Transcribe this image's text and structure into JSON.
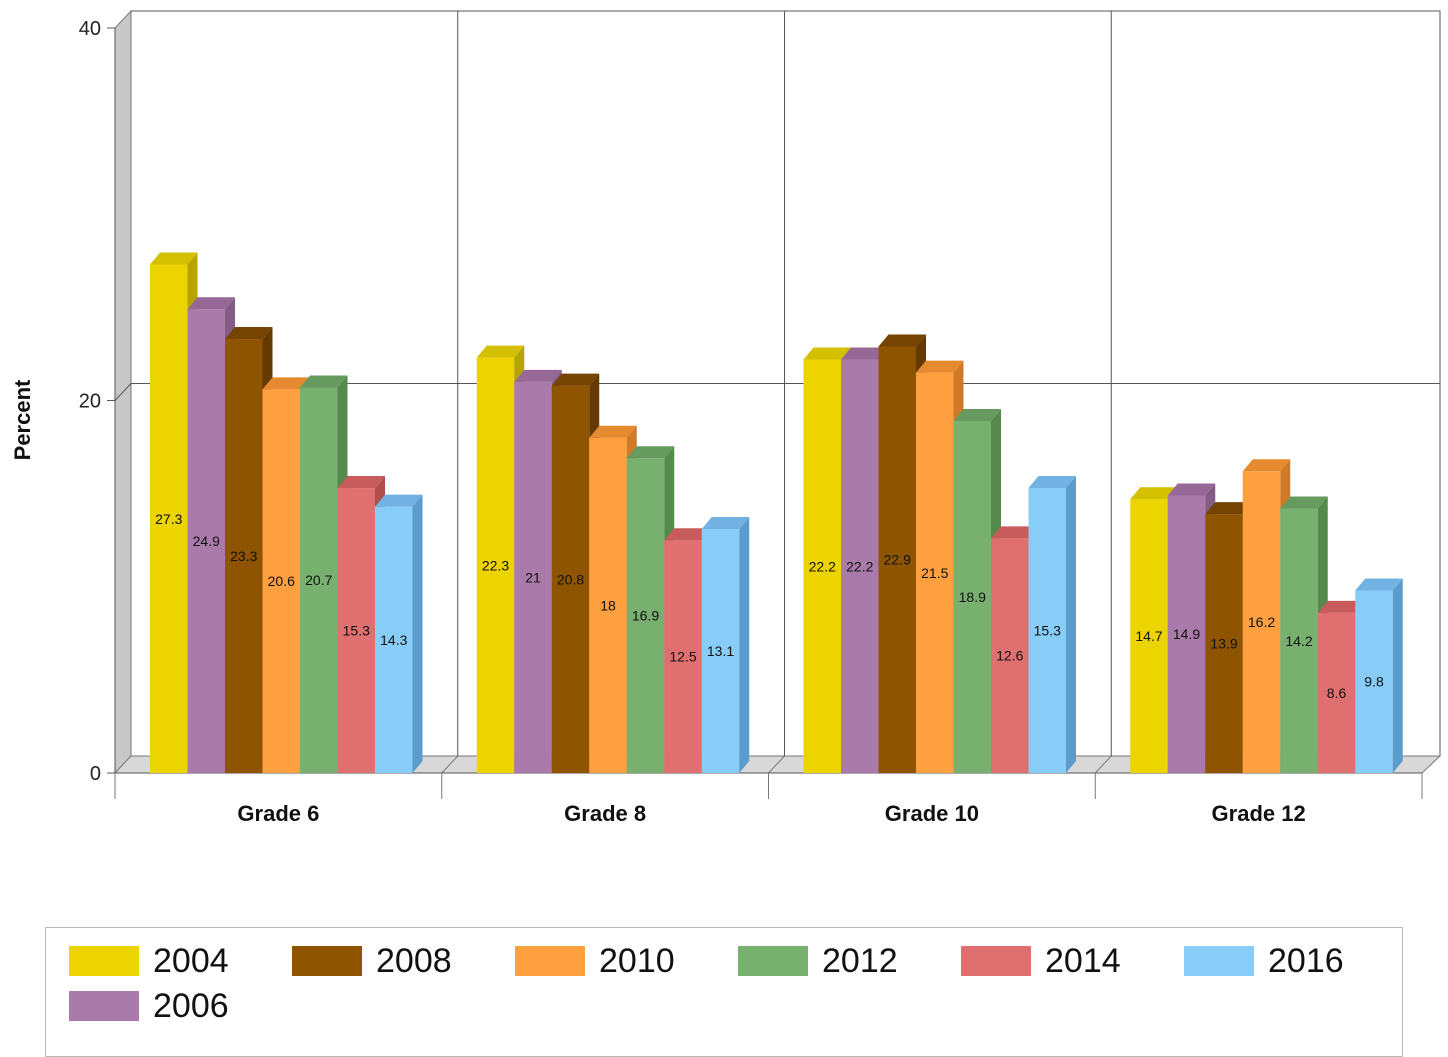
{
  "chart_data": {
    "type": "bar",
    "ylabel": "Percent",
    "ylim": [
      0,
      40
    ],
    "yticks": [
      "0",
      "20",
      "40"
    ],
    "grid": true,
    "style": "3d",
    "legend_position": "bottom",
    "categories": [
      "Grade 6",
      "Grade 8",
      "Grade 10",
      "Grade 12"
    ],
    "series": [
      {
        "name": "2004",
        "color": "#ecd400",
        "side": "#b8a400",
        "top": "#d4bf00",
        "values": [
          27.3,
          22.3,
          22.2,
          14.7
        ]
      },
      {
        "name": "2006",
        "color": "#aa7aaa",
        "side": "#845c84",
        "top": "#966896",
        "values": [
          24.9,
          21,
          22.2,
          14.9
        ]
      },
      {
        "name": "2008",
        "color": "#8e5400",
        "side": "#643a00",
        "top": "#744400",
        "values": [
          23.3,
          20.8,
          22.9,
          13.9
        ]
      },
      {
        "name": "2010",
        "color": "#ffa040",
        "side": "#d07a28",
        "top": "#e68a30",
        "values": [
          20.6,
          18,
          21.5,
          16.2
        ]
      },
      {
        "name": "2012",
        "color": "#78b070",
        "side": "#548a4c",
        "top": "#669a5e",
        "values": [
          20.7,
          16.9,
          18.9,
          14.2
        ]
      },
      {
        "name": "2014",
        "color": "#e07070",
        "side": "#b04e4e",
        "top": "#c85c5c",
        "values": [
          15.3,
          12.5,
          12.6,
          8.6
        ]
      },
      {
        "name": "2016",
        "color": "#88ccf8",
        "side": "#5c9ccc",
        "top": "#72b2e2",
        "values": [
          14.3,
          13.1,
          15.3,
          9.8
        ]
      }
    ],
    "value_labels": [
      [
        "27.3",
        "22.3",
        "22.2",
        "14.7"
      ],
      [
        "24.9",
        "21",
        "22.2",
        "14.9"
      ],
      [
        "23.3",
        "20.8",
        "22.9",
        "13.9"
      ],
      [
        "20.6",
        "18",
        "21.5",
        "16.2"
      ],
      [
        "20.7",
        "16.9",
        "18.9",
        "14.2"
      ],
      [
        "15.3",
        "12.5",
        "12.6",
        "8.6"
      ],
      [
        "14.3",
        "13.1",
        "15.3",
        "9.8"
      ]
    ]
  },
  "legend": {
    "items": [
      {
        "label": "2004",
        "color": "#ecd400"
      },
      {
        "label": "2008",
        "color": "#8e5400"
      },
      {
        "label": "2010",
        "color": "#ffa040"
      },
      {
        "label": "2012",
        "color": "#78b070"
      },
      {
        "label": "2014",
        "color": "#e07070"
      },
      {
        "label": "2016",
        "color": "#88ccf8"
      },
      {
        "label": "2006",
        "color": "#aa7aaa"
      }
    ]
  }
}
